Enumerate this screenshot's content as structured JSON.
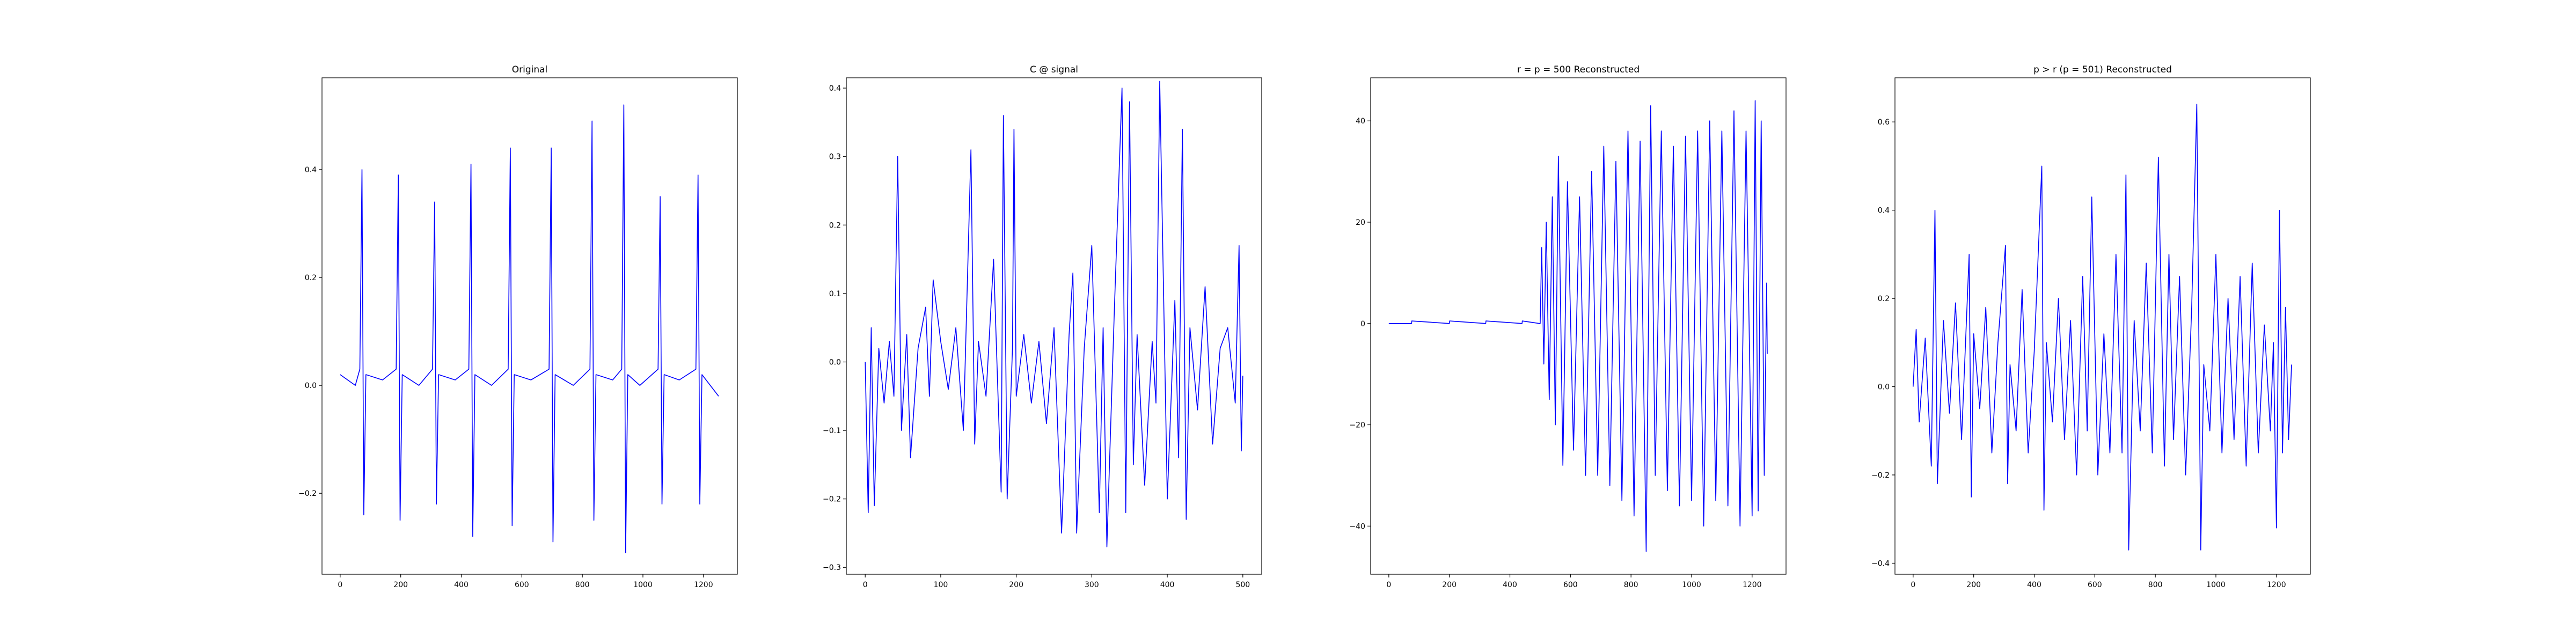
{
  "chart_data": [
    {
      "type": "line",
      "title": "Original",
      "xlim": [
        -60,
        1312
      ],
      "ylim": [
        -0.35,
        0.57
      ],
      "xticks": [
        0,
        200,
        400,
        600,
        800,
        1000,
        1200
      ],
      "yticks": [
        -0.2,
        0.0,
        0.2,
        0.4
      ],
      "ytick_labels": [
        "−0.2",
        "0.0",
        "0.2",
        "0.4"
      ],
      "grid": false,
      "color": "#0000ff",
      "series": [
        {
          "x": [
            0,
            50,
            65,
            72,
            78,
            85,
            140,
            185,
            192,
            198,
            205,
            260,
            305,
            312,
            318,
            325,
            380,
            425,
            432,
            438,
            445,
            500,
            555,
            562,
            568,
            575,
            630,
            690,
            697,
            703,
            710,
            770,
            825,
            832,
            838,
            845,
            900,
            930,
            937,
            943,
            950,
            990,
            1050,
            1057,
            1063,
            1070,
            1120,
            1175,
            1182,
            1188,
            1195,
            1250
          ],
          "y": [
            0.02,
            0.0,
            0.03,
            0.4,
            -0.24,
            0.02,
            0.01,
            0.03,
            0.39,
            -0.25,
            0.02,
            0.0,
            0.03,
            0.34,
            -0.22,
            0.02,
            0.01,
            0.03,
            0.41,
            -0.28,
            0.02,
            0.0,
            0.03,
            0.44,
            -0.26,
            0.02,
            0.01,
            0.03,
            0.44,
            -0.29,
            0.02,
            0.0,
            0.03,
            0.49,
            -0.25,
            0.02,
            0.01,
            0.03,
            0.52,
            -0.31,
            0.02,
            0.0,
            0.03,
            0.35,
            -0.22,
            0.02,
            0.01,
            0.03,
            0.39,
            -0.22,
            0.02,
            -0.02
          ]
        }
      ]
    },
    {
      "type": "line",
      "title": "C @ signal",
      "xlim": [
        -25,
        525
      ],
      "ylim": [
        -0.31,
        0.415
      ],
      "xticks": [
        0,
        100,
        200,
        300,
        400,
        500
      ],
      "yticks": [
        -0.3,
        -0.2,
        -0.1,
        0.0,
        0.1,
        0.2,
        0.3,
        0.4
      ],
      "ytick_labels": [
        "−0.3",
        "−0.2",
        "−0.1",
        "0.0",
        "0.1",
        "0.2",
        "0.3",
        "0.4"
      ],
      "grid": false,
      "color": "#0000ff",
      "series": [
        {
          "x": [
            0,
            4,
            8,
            12,
            18,
            25,
            32,
            38,
            43,
            48,
            55,
            60,
            70,
            80,
            85,
            90,
            100,
            110,
            120,
            130,
            140,
            145,
            150,
            160,
            170,
            180,
            183,
            188,
            195,
            197,
            200,
            210,
            220,
            230,
            240,
            250,
            260,
            270,
            275,
            280,
            290,
            300,
            310,
            315,
            320,
            330,
            340,
            345,
            350,
            355,
            360,
            370,
            380,
            385,
            390,
            400,
            410,
            415,
            420,
            425,
            430,
            440,
            450,
            460,
            470,
            480,
            490,
            495,
            498,
            500
          ],
          "y": [
            0.0,
            -0.22,
            0.05,
            -0.21,
            0.02,
            -0.06,
            0.03,
            -0.05,
            0.3,
            -0.1,
            0.04,
            -0.14,
            0.02,
            0.08,
            -0.05,
            0.12,
            0.03,
            -0.04,
            0.05,
            -0.1,
            0.31,
            -0.12,
            0.03,
            -0.05,
            0.15,
            -0.19,
            0.36,
            -0.2,
            0.02,
            0.34,
            -0.05,
            0.04,
            -0.06,
            0.03,
            -0.09,
            0.05,
            -0.25,
            0.04,
            0.13,
            -0.25,
            0.02,
            0.17,
            -0.22,
            0.05,
            -0.27,
            0.08,
            0.4,
            -0.22,
            0.38,
            -0.15,
            0.04,
            -0.18,
            0.03,
            -0.06,
            0.41,
            -0.2,
            0.09,
            -0.14,
            0.34,
            -0.23,
            0.05,
            -0.07,
            0.11,
            -0.12,
            0.02,
            0.05,
            -0.06,
            0.17,
            -0.13,
            -0.02
          ]
        }
      ]
    },
    {
      "type": "line",
      "title": "r = p = 500 Reconstructed",
      "xlim": [
        -60,
        1312
      ],
      "ylim": [
        -49.5,
        48.5
      ],
      "xticks": [
        0,
        200,
        400,
        600,
        800,
        1000,
        1200
      ],
      "yticks": [
        -40,
        -20,
        0,
        20,
        40
      ],
      "ytick_labels": [
        "−40",
        "−20",
        "0",
        "20",
        "40"
      ],
      "grid": false,
      "color": "#0000ff",
      "series": [
        {
          "x": [
            0,
            75,
            76,
            200,
            201,
            320,
            321,
            440,
            441,
            498,
            500,
            505,
            512,
            520,
            530,
            540,
            550,
            560,
            575,
            590,
            610,
            630,
            650,
            670,
            690,
            710,
            730,
            750,
            770,
            790,
            810,
            830,
            850,
            865,
            880,
            900,
            920,
            940,
            960,
            980,
            1000,
            1020,
            1040,
            1060,
            1080,
            1100,
            1120,
            1140,
            1160,
            1180,
            1200,
            1210,
            1220,
            1230,
            1240,
            1248,
            1250
          ],
          "y": [
            0,
            0,
            0.5,
            0,
            0.5,
            0,
            0.5,
            0,
            0.5,
            0,
            0,
            15,
            -8,
            20,
            -15,
            25,
            -20,
            33,
            -28,
            28,
            -25,
            25,
            -30,
            30,
            -30,
            35,
            -32,
            32,
            -35,
            38,
            -38,
            36,
            -45,
            43,
            -30,
            38,
            -33,
            35,
            -36,
            37,
            -35,
            38,
            -40,
            40,
            -35,
            38,
            -36,
            42,
            -40,
            38,
            -38,
            44,
            -37,
            40,
            -30,
            8,
            -6
          ]
        }
      ]
    },
    {
      "type": "line",
      "title": "p > r (p = 501) Reconstructed",
      "xlim": [
        -60,
        1312
      ],
      "ylim": [
        -0.425,
        0.7
      ],
      "xticks": [
        0,
        200,
        400,
        600,
        800,
        1000,
        1200
      ],
      "yticks": [
        -0.4,
        -0.2,
        0.0,
        0.2,
        0.4,
        0.6
      ],
      "ytick_labels": [
        "−0.4",
        "−0.2",
        "0.0",
        "0.2",
        "0.4",
        "0.6"
      ],
      "grid": false,
      "color": "#0000ff",
      "series": [
        {
          "x": [
            0,
            10,
            20,
            40,
            60,
            72,
            80,
            100,
            120,
            140,
            160,
            185,
            192,
            200,
            220,
            240,
            260,
            280,
            305,
            312,
            320,
            340,
            360,
            380,
            400,
            425,
            432,
            440,
            460,
            480,
            500,
            520,
            540,
            560,
            575,
            590,
            610,
            630,
            650,
            670,
            690,
            703,
            712,
            730,
            750,
            770,
            790,
            810,
            830,
            845,
            860,
            880,
            900,
            920,
            937,
            950,
            960,
            980,
            1000,
            1020,
            1040,
            1060,
            1080,
            1100,
            1120,
            1140,
            1160,
            1180,
            1190,
            1200,
            1210,
            1220,
            1230,
            1240,
            1250
          ],
          "y": [
            0.0,
            0.13,
            -0.08,
            0.11,
            -0.18,
            0.4,
            -0.22,
            0.15,
            -0.06,
            0.19,
            -0.12,
            0.3,
            -0.25,
            0.12,
            -0.05,
            0.18,
            -0.15,
            0.1,
            0.32,
            -0.22,
            0.05,
            -0.1,
            0.22,
            -0.15,
            0.08,
            0.5,
            -0.28,
            0.1,
            -0.08,
            0.2,
            -0.12,
            0.15,
            -0.2,
            0.25,
            -0.1,
            0.43,
            -0.2,
            0.12,
            -0.15,
            0.3,
            -0.15,
            0.48,
            -0.37,
            0.15,
            -0.1,
            0.28,
            -0.15,
            0.52,
            -0.18,
            0.3,
            -0.12,
            0.25,
            -0.2,
            0.18,
            0.64,
            -0.37,
            0.05,
            -0.1,
            0.3,
            -0.15,
            0.2,
            -0.12,
            0.25,
            -0.18,
            0.28,
            -0.15,
            0.14,
            -0.1,
            0.1,
            -0.32,
            0.4,
            -0.15,
            0.18,
            -0.12,
            0.05
          ]
        }
      ]
    }
  ]
}
